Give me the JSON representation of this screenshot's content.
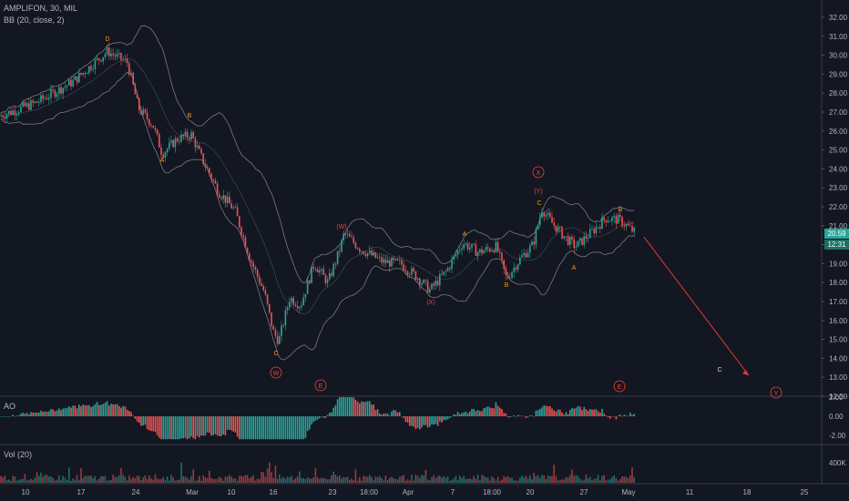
{
  "legend": {
    "symbol": "AMPLIFON, 30, MIL",
    "indicator": "BB (20, close, 2)",
    "ao": "AO",
    "vol": "Vol (20)"
  },
  "price_axis": [
    "32.00",
    "31.00",
    "30.00",
    "29.00",
    "28.00",
    "27.00",
    "26.00",
    "25.00",
    "24.00",
    "23.00",
    "22.00",
    "21.00",
    "20.00",
    "19.00",
    "18.00",
    "17.00",
    "16.00",
    "15.00",
    "14.00",
    "13.00",
    "12.00"
  ],
  "ao_axis": [
    "2.00",
    "0.00",
    "-2.00"
  ],
  "vol_axis": [
    "400K"
  ],
  "time_axis": [
    "10",
    "17",
    "24",
    "Mar",
    "10",
    "16",
    "23",
    "18:00",
    "Apr",
    "7",
    "18:00",
    "20",
    "27",
    "May",
    "11",
    "18",
    "25"
  ],
  "last_price": "20.59",
  "countdown": "12:31",
  "wave_labels": {
    "D": "D",
    "A1": "A",
    "B1": "B",
    "C1": "C",
    "W": "W",
    "E1": "E",
    "W2": "(W)",
    "X": "(X)",
    "A2": "A",
    "B2": "B",
    "X2": "X",
    "Y": "(Y)",
    "C2": "C",
    "A3": "A",
    "B3": "B",
    "E2": "E",
    "C3": "C",
    "Y2": "Y"
  },
  "colors": {
    "background": "#131722",
    "up": "#26a69a",
    "down": "#ef5350",
    "band": "#787b86",
    "forecast": "#e53935",
    "wave_orange": "#ff9800",
    "wave_red": "#f44336"
  }
}
